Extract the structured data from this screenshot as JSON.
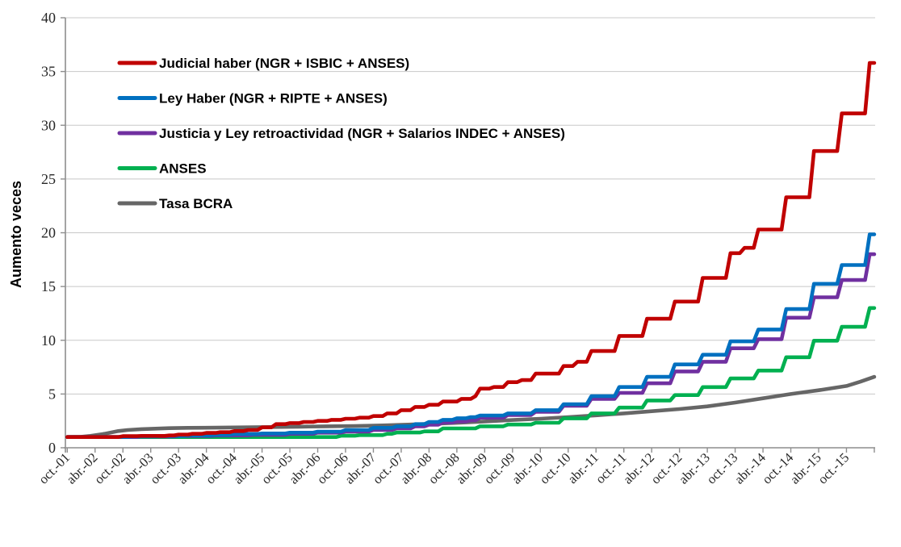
{
  "chart_data": {
    "type": "line",
    "title": "",
    "ylabel": "Aumento veces",
    "xlabel": "",
    "ylim": [
      0,
      40
    ],
    "y_ticks": [
      0,
      5,
      10,
      15,
      20,
      25,
      30,
      35,
      40
    ],
    "x_tick_labels": [
      "oct.-01",
      "abr.-02",
      "oct.-02",
      "abr.-03",
      "oct.-03",
      "abr.-04",
      "oct.-04",
      "abr.-05",
      "oct.-05",
      "abr.-06",
      "oct.-06",
      "abr.-07",
      "oct.-07",
      "abr.-08",
      "oct.-08",
      "abr.-09",
      "oct.-09",
      "abr.-10",
      "oct.-10",
      "abr.-11",
      "oct.-11",
      "abr.-12",
      "oct.-12",
      "abr.-13",
      "oct.-13",
      "abr.-14",
      "oct.-14",
      "abr.-15",
      "oct.-15"
    ],
    "x_axis_note": "monthly index, month 0 = oct-2001, labels every 6 months, data through ~abr-2016 (month 174)",
    "grid": true,
    "legend_position": "top-left-inside",
    "colors": {
      "grid": "#C8C8C8",
      "axis": "#8E8E8E",
      "tick_text": "#262626"
    },
    "series": [
      {
        "name": "Judicial haber (NGR + ISBIC + ANSES)",
        "color": "#C00000",
        "style": "step",
        "points": [
          [
            0,
            1.0
          ],
          [
            8,
            1.0
          ],
          [
            12,
            1.08
          ],
          [
            16,
            1.1
          ],
          [
            22,
            1.15
          ],
          [
            24,
            1.22
          ],
          [
            27,
            1.3
          ],
          [
            30,
            1.38
          ],
          [
            33,
            1.45
          ],
          [
            36,
            1.55
          ],
          [
            39,
            1.65
          ],
          [
            42,
            1.9
          ],
          [
            45,
            2.2
          ],
          [
            48,
            2.3
          ],
          [
            51,
            2.4
          ],
          [
            54,
            2.5
          ],
          [
            57,
            2.6
          ],
          [
            60,
            2.7
          ],
          [
            63,
            2.8
          ],
          [
            66,
            2.95
          ],
          [
            69,
            3.2
          ],
          [
            72,
            3.5
          ],
          [
            75,
            3.8
          ],
          [
            78,
            4.0
          ],
          [
            81,
            4.3
          ],
          [
            85,
            4.55
          ],
          [
            88,
            4.8
          ],
          [
            89,
            5.5
          ],
          [
            92,
            5.65
          ],
          [
            95,
            6.1
          ],
          [
            98,
            6.3
          ],
          [
            101,
            6.9
          ],
          [
            107,
            7.6
          ],
          [
            110,
            8.0
          ],
          [
            113,
            9.0
          ],
          [
            119,
            10.4
          ],
          [
            125,
            12.0
          ],
          [
            131,
            13.6
          ],
          [
            137,
            15.8
          ],
          [
            143,
            18.1
          ],
          [
            146,
            18.6
          ],
          [
            149,
            20.3
          ],
          [
            155,
            23.3
          ],
          [
            161,
            27.6
          ],
          [
            167,
            31.1
          ],
          [
            173,
            35.8
          ],
          [
            174,
            35.8
          ]
        ]
      },
      {
        "name": "Ley Haber (NGR + RIPTE + ANSES)",
        "color": "#0070C0",
        "style": "step",
        "points": [
          [
            0,
            1.0
          ],
          [
            10,
            1.0
          ],
          [
            14,
            1.05
          ],
          [
            20,
            1.1
          ],
          [
            26,
            1.15
          ],
          [
            32,
            1.2
          ],
          [
            36,
            1.28
          ],
          [
            42,
            1.33
          ],
          [
            48,
            1.4
          ],
          [
            54,
            1.5
          ],
          [
            60,
            1.65
          ],
          [
            66,
            1.85
          ],
          [
            71,
            2.0
          ],
          [
            75,
            2.2
          ],
          [
            78,
            2.4
          ],
          [
            81,
            2.6
          ],
          [
            84,
            2.75
          ],
          [
            87,
            2.85
          ],
          [
            89,
            3.0
          ],
          [
            95,
            3.2
          ],
          [
            101,
            3.5
          ],
          [
            107,
            4.05
          ],
          [
            113,
            4.8
          ],
          [
            119,
            5.65
          ],
          [
            125,
            6.6
          ],
          [
            131,
            7.75
          ],
          [
            137,
            8.65
          ],
          [
            143,
            9.9
          ],
          [
            149,
            11.0
          ],
          [
            155,
            12.9
          ],
          [
            161,
            15.25
          ],
          [
            167,
            17.0
          ],
          [
            173,
            19.85
          ],
          [
            174,
            19.85
          ]
        ]
      },
      {
        "name": "Justicia y Ley retroactividad (NGR + Salarios INDEC + ANSES)",
        "color": "#7030A0",
        "style": "step",
        "points": [
          [
            0,
            1.0
          ],
          [
            10,
            1.0
          ],
          [
            16,
            1.05
          ],
          [
            24,
            1.1
          ],
          [
            32,
            1.15
          ],
          [
            40,
            1.2
          ],
          [
            48,
            1.3
          ],
          [
            54,
            1.4
          ],
          [
            60,
            1.5
          ],
          [
            66,
            1.65
          ],
          [
            71,
            1.8
          ],
          [
            75,
            2.0
          ],
          [
            78,
            2.15
          ],
          [
            81,
            2.35
          ],
          [
            84,
            2.45
          ],
          [
            87,
            2.55
          ],
          [
            89,
            2.8
          ],
          [
            95,
            3.05
          ],
          [
            101,
            3.35
          ],
          [
            107,
            3.9
          ],
          [
            113,
            4.55
          ],
          [
            119,
            5.1
          ],
          [
            125,
            6.0
          ],
          [
            131,
            7.1
          ],
          [
            137,
            8.0
          ],
          [
            143,
            9.25
          ],
          [
            149,
            10.1
          ],
          [
            155,
            12.1
          ],
          [
            161,
            14.0
          ],
          [
            167,
            15.6
          ],
          [
            173,
            18.0
          ],
          [
            174,
            18.0
          ]
        ]
      },
      {
        "name": "ANSES",
        "color": "#00B050",
        "style": "step",
        "points": [
          [
            0,
            1.0
          ],
          [
            56,
            1.0
          ],
          [
            59,
            1.12
          ],
          [
            63,
            1.18
          ],
          [
            69,
            1.3
          ],
          [
            71,
            1.42
          ],
          [
            77,
            1.52
          ],
          [
            81,
            1.8
          ],
          [
            89,
            2.0
          ],
          [
            95,
            2.16
          ],
          [
            101,
            2.33
          ],
          [
            107,
            2.73
          ],
          [
            113,
            3.2
          ],
          [
            119,
            3.74
          ],
          [
            125,
            4.4
          ],
          [
            131,
            4.9
          ],
          [
            137,
            5.64
          ],
          [
            143,
            6.45
          ],
          [
            149,
            7.18
          ],
          [
            155,
            8.42
          ],
          [
            161,
            9.96
          ],
          [
            167,
            11.25
          ],
          [
            173,
            13.0
          ],
          [
            174,
            13.0
          ]
        ]
      },
      {
        "name": "Tasa BCRA",
        "color": "#666666",
        "style": "line",
        "points": [
          [
            0,
            1.0
          ],
          [
            3,
            1.02
          ],
          [
            5,
            1.1
          ],
          [
            8,
            1.3
          ],
          [
            11,
            1.55
          ],
          [
            13,
            1.65
          ],
          [
            16,
            1.73
          ],
          [
            19,
            1.78
          ],
          [
            22,
            1.82
          ],
          [
            26,
            1.85
          ],
          [
            32,
            1.87
          ],
          [
            38,
            1.9
          ],
          [
            44,
            1.93
          ],
          [
            50,
            1.96
          ],
          [
            56,
            2.0
          ],
          [
            62,
            2.03
          ],
          [
            68,
            2.08
          ],
          [
            72,
            2.13
          ],
          [
            78,
            2.22
          ],
          [
            84,
            2.32
          ],
          [
            90,
            2.45
          ],
          [
            96,
            2.58
          ],
          [
            102,
            2.7
          ],
          [
            108,
            2.85
          ],
          [
            114,
            3.02
          ],
          [
            120,
            3.2
          ],
          [
            126,
            3.4
          ],
          [
            132,
            3.6
          ],
          [
            138,
            3.85
          ],
          [
            144,
            4.2
          ],
          [
            150,
            4.6
          ],
          [
            156,
            5.0
          ],
          [
            162,
            5.35
          ],
          [
            168,
            5.75
          ],
          [
            171,
            6.15
          ],
          [
            174,
            6.6
          ]
        ]
      }
    ]
  }
}
